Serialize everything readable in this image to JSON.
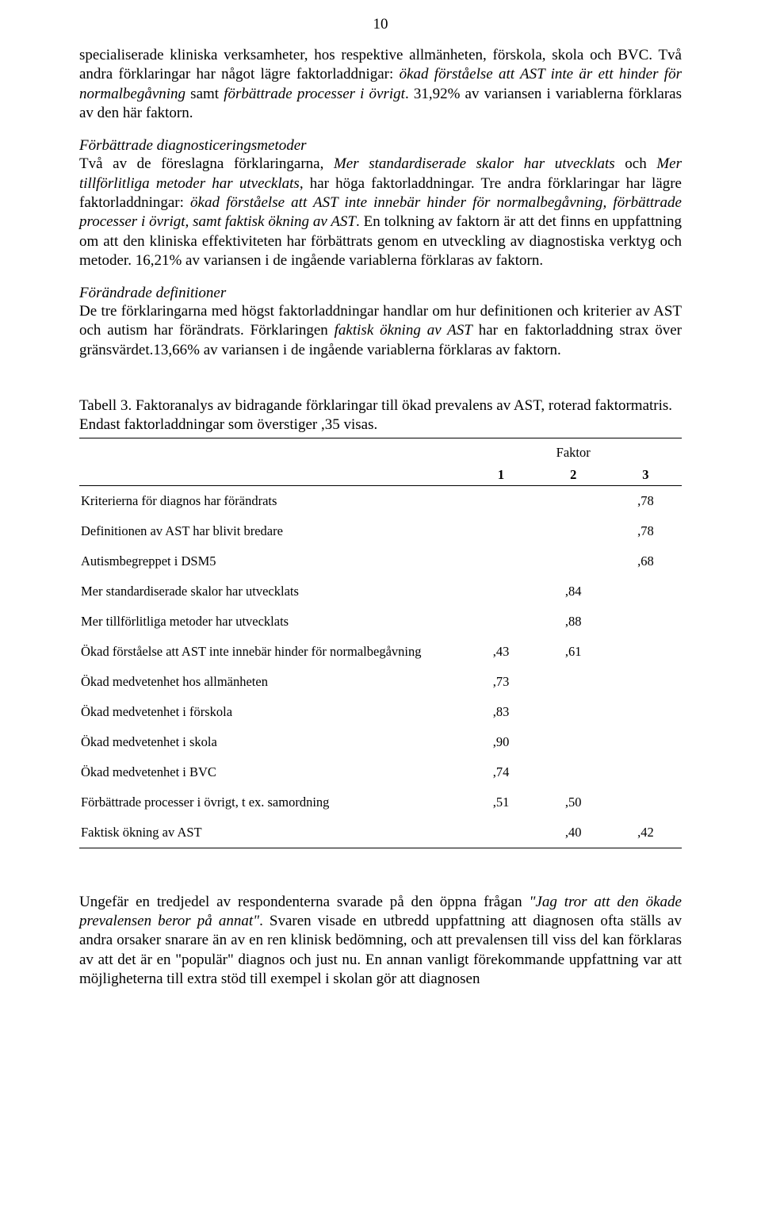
{
  "page_number": "10",
  "para0": "specialiserade kliniska verksamheter, hos respektive allmänheten, förskola, skola och BVC. Två andra förklaringar har något lägre faktorladdnigar: ",
  "para0_i1": "ökad förståelse att AST inte är ett hinder för normalbegåvning",
  "para0_mid": " samt ",
  "para0_i2": "förbättrade processer i övrigt",
  "para0_end": ". 31,92% av variansen i variablerna förklaras av den här faktorn.",
  "head1": "Förbättrade diagnosticeringsmetoder",
  "p1a": "Två av de föreslagna förklaringarna, ",
  "p1i1": "Mer standardiserade skalor har utvecklats",
  "p1b": " och ",
  "p1i2": "Mer tillförlitliga metoder har utvecklats",
  "p1c": ", har höga faktorladdningar. Tre andra förklaringar har lägre faktorladdningar: ",
  "p1i3": "ökad förståelse att AST inte innebär hinder för normalbegåvning, förbättrade processer i övrigt, samt faktisk ökning av AST",
  "p1d": ". En tolkning av faktorn är att det finns en uppfattning om att den kliniska effektiviteten har förbättrats genom en utveckling av diagnostiska verktyg och metoder. 16,21% av variansen i de ingående variablerna förklaras av faktorn.",
  "head2": "Förändrade definitioner",
  "p2a": "De tre förklaringarna med högst faktorladdningar handlar om hur definitionen och kriterier av AST och autism har förändrats. Förklaringen ",
  "p2i1": "faktisk ökning av AST",
  "p2b": " har en faktorladdning strax över gränsvärdet.13,66% av variansen i de ingående variablerna förklaras av faktorn.",
  "table": {
    "caption": "Tabell 3. Faktoranalys av bidragande förklaringar till ökad prevalens av AST, roterad faktormatris. Endast faktorladdningar som överstiger ,35 visas.",
    "factor_label": "Faktor",
    "col_headers": [
      "1",
      "2",
      "3"
    ],
    "col_widths": [
      "64%",
      "12%",
      "12%",
      "12%"
    ],
    "fontsize_body": 16.5,
    "fontsize_caption": 19,
    "text_color": "#000000",
    "border_color": "#000000",
    "background_color": "#ffffff"
  },
  "rows": [
    {
      "label": "Kriterierna för diagnos har förändrats",
      "v": [
        "",
        "",
        ",78"
      ]
    },
    {
      "label": "Definitionen av AST har blivit bredare",
      "v": [
        "",
        "",
        ",78"
      ]
    },
    {
      "label": "Autismbegreppet i DSM5",
      "v": [
        "",
        "",
        ",68"
      ]
    },
    {
      "label": "Mer standardiserade skalor har utvecklats",
      "v": [
        "",
        ",84",
        ""
      ]
    },
    {
      "label": "Mer tillförlitliga metoder har utvecklats",
      "v": [
        "",
        ",88",
        ""
      ]
    },
    {
      "label": "Ökad förståelse att AST inte innebär hinder för normalbegåvning",
      "v": [
        ",43",
        ",61",
        ""
      ]
    },
    {
      "label": "Ökad medvetenhet hos allmänheten",
      "v": [
        ",73",
        "",
        ""
      ]
    },
    {
      "label": "Ökad medvetenhet i förskola",
      "v": [
        ",83",
        "",
        ""
      ]
    },
    {
      "label": "Ökad medvetenhet i skola",
      "v": [
        ",90",
        "",
        ""
      ]
    },
    {
      "label": "Ökad medvetenhet i BVC",
      "v": [
        ",74",
        "",
        ""
      ]
    },
    {
      "label": "Förbättrade processer i övrigt, t ex. samordning",
      "v": [
        ",51",
        ",50",
        ""
      ]
    },
    {
      "label": "Faktisk ökning av AST",
      "v": [
        "",
        ",40",
        ",42"
      ]
    }
  ],
  "p3a": "Ungefär en tredjedel av respondenterna svarade på den öppna frågan ",
  "p3i1": "\"Jag tror att den ökade prevalensen beror på annat\"",
  "p3b": ". Svaren visade en utbredd uppfattning att diagnosen ofta ställs av andra orsaker snarare än av en ren klinisk bedömning, och att prevalensen till viss del kan förklaras av att det är en \"populär\" diagnos och just nu. En annan vanligt förekommande uppfattning var att möjligheterna till extra stöd till exempel i skolan gör att diagnosen"
}
